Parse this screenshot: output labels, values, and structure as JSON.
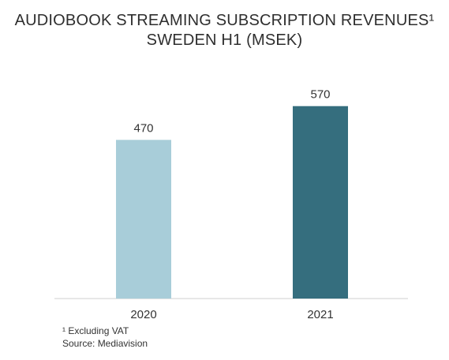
{
  "chart_data": {
    "type": "bar",
    "title_line1": "AUDIOBOOK STREAMING SUBSCRIPTION REVENUES¹",
    "title_line2": "SWEDEN H1 (MSEK)",
    "categories": [
      "2020",
      "2021"
    ],
    "values": [
      470,
      570
    ],
    "bar_colors": [
      "#a8cdd9",
      "#356e7e"
    ],
    "ylim": [
      0,
      700
    ],
    "grid": false,
    "legend": "none"
  },
  "footnotes": {
    "vat": "¹ Excluding VAT",
    "source": "Source: Mediavision"
  }
}
